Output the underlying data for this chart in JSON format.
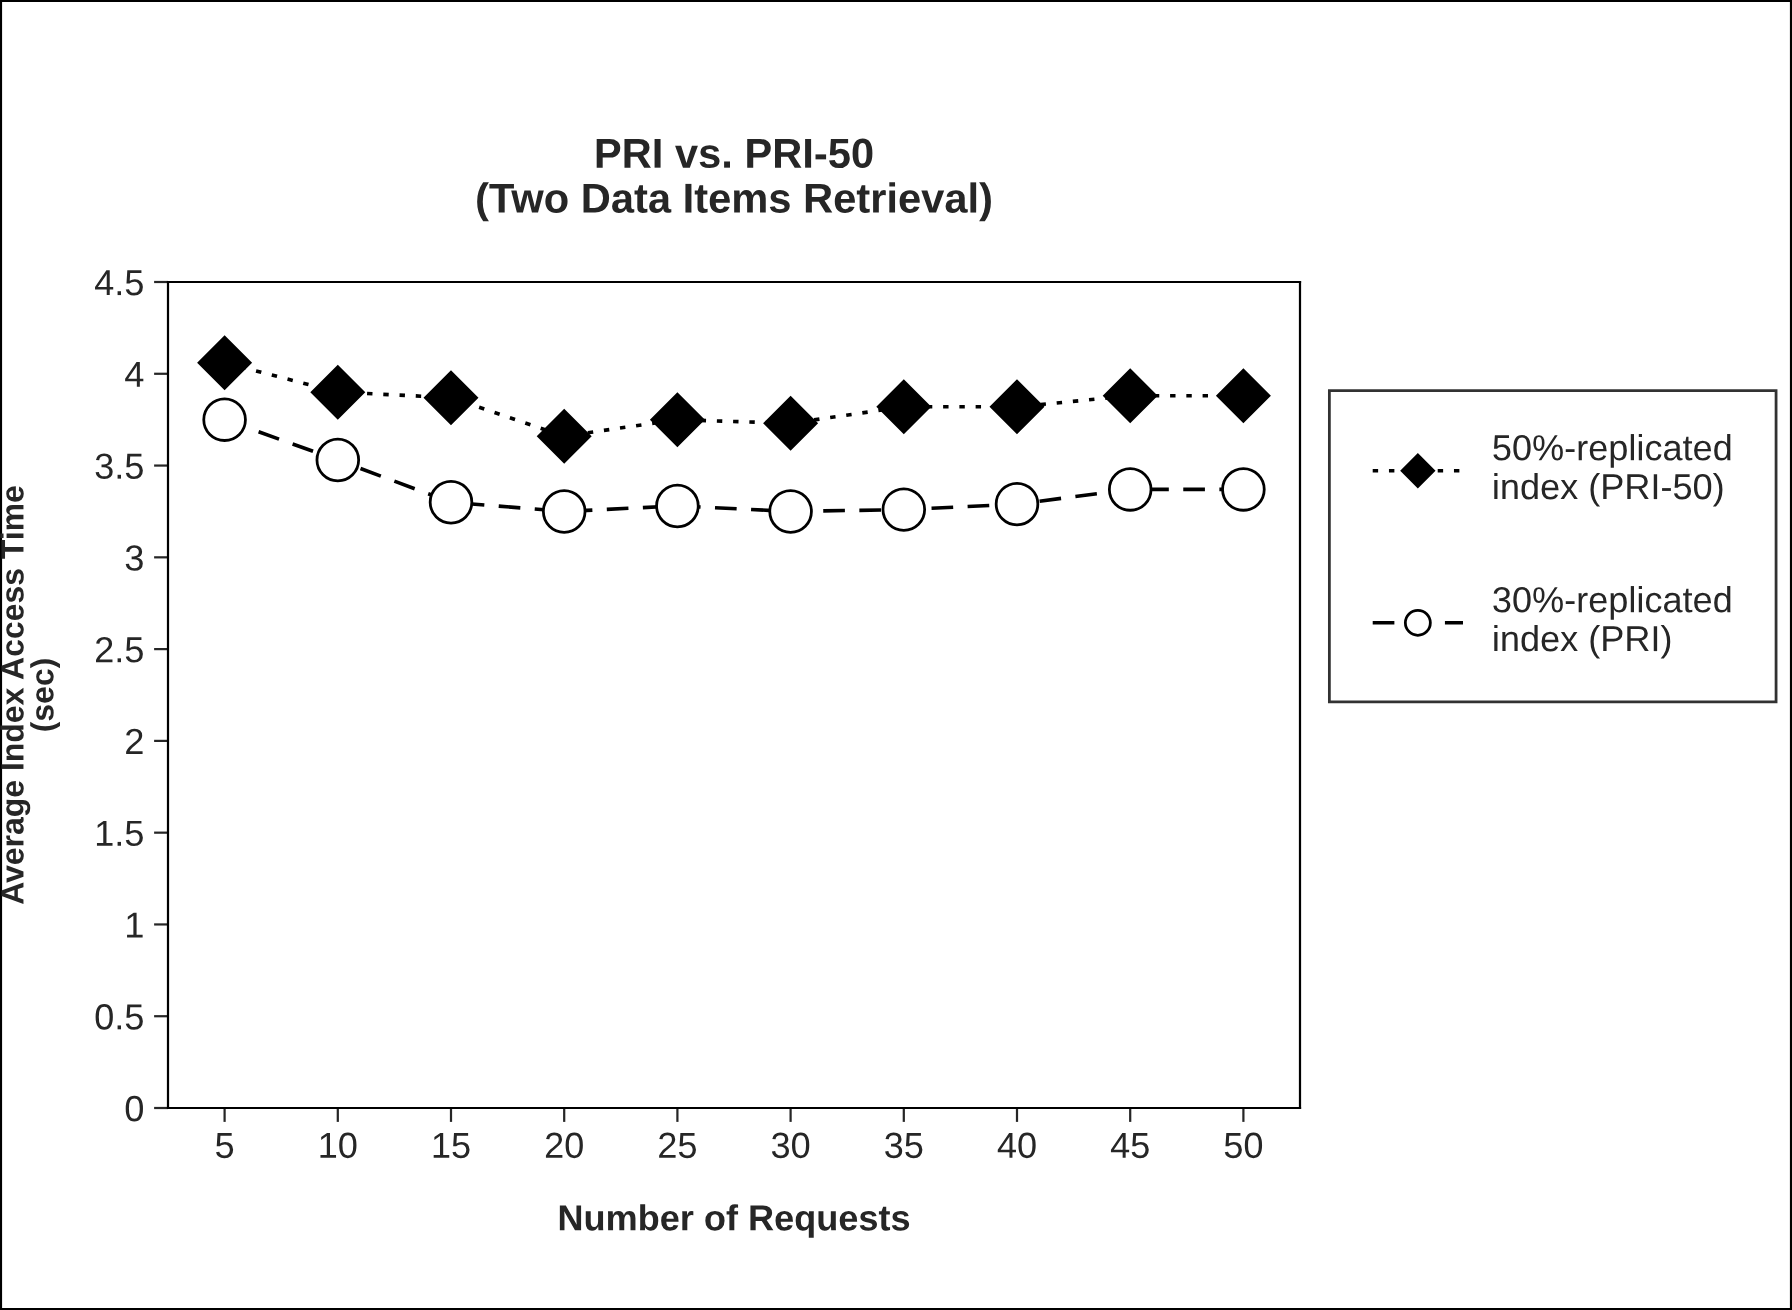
{
  "chart_data": {
    "type": "line",
    "title": "PRI vs. PRI-50\n(Two Data Items Retrieval)",
    "xlabel": "Number of Requests",
    "ylabel": "Average Index Access Time\n(sec)",
    "categories": [
      "5",
      "10",
      "15",
      "20",
      "25",
      "30",
      "35",
      "40",
      "45",
      "50"
    ],
    "series": [
      {
        "name": "50%-replicated\nindex (PRI-50)",
        "color": "#000000",
        "marker": "diamond",
        "line_style": "dotted",
        "values": [
          4.06,
          3.9,
          3.87,
          3.66,
          3.75,
          3.73,
          3.82,
          3.82,
          3.88,
          3.88
        ]
      },
      {
        "name": "30%-replicated\nindex (PRI)",
        "color": "#000000",
        "marker": "circle",
        "line_style": "dashed",
        "values": [
          3.75,
          3.53,
          3.3,
          3.25,
          3.28,
          3.25,
          3.26,
          3.29,
          3.37,
          3.37
        ]
      }
    ],
    "ylim": [
      0,
      4.5
    ],
    "yticks": [
      0,
      0.5,
      1,
      1.5,
      2,
      2.5,
      3,
      3.5,
      4,
      4.5
    ],
    "grid": false,
    "legend": "right"
  }
}
